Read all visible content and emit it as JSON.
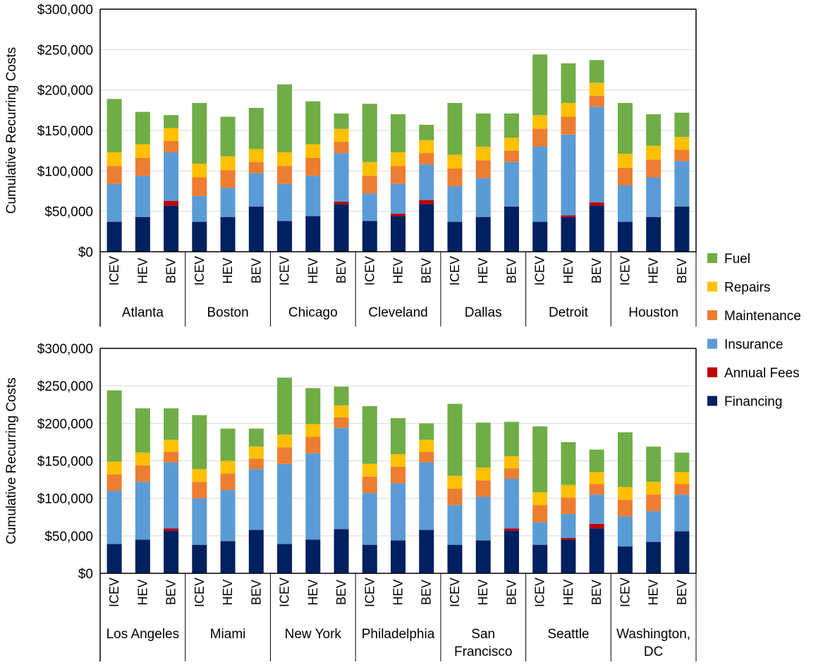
{
  "chart_data": {
    "type": "bar",
    "stacked": true,
    "ylabel": "Cumulative Recurring Costs",
    "ylim": [
      0,
      300000
    ],
    "y_ticks": [
      0,
      50000,
      100000,
      150000,
      200000,
      250000,
      300000
    ],
    "y_tick_labels": [
      "$0",
      "$50,000",
      "$100,000",
      "$150,000",
      "$200,000",
      "$250,000",
      "$300,000"
    ],
    "grid": true,
    "legend_position": "right",
    "vehicle_types": [
      "ICEV",
      "HEV",
      "BEV"
    ],
    "series": [
      {
        "name": "Fuel",
        "color": "#70AD47"
      },
      {
        "name": "Repairs",
        "color": "#FFC000"
      },
      {
        "name": "Maintenance",
        "color": "#ED7D31"
      },
      {
        "name": "Insurance",
        "color": "#5B9BD5"
      },
      {
        "name": "Annual Fees",
        "color": "#C00000"
      },
      {
        "name": "Financing",
        "color": "#002060"
      }
    ],
    "panels": [
      {
        "cities": [
          {
            "name": [
              "Atlanta"
            ],
            "bars": [
              {
                "Financing": 37000,
                "Annual Fees": 0,
                "Insurance": 47000,
                "Maintenance": 22000,
                "Repairs": 17000,
                "Fuel": 66000
              },
              {
                "Financing": 43000,
                "Annual Fees": 0,
                "Insurance": 51000,
                "Maintenance": 22000,
                "Repairs": 17000,
                "Fuel": 40000
              },
              {
                "Financing": 57000,
                "Annual Fees": 6000,
                "Insurance": 60000,
                "Maintenance": 14000,
                "Repairs": 16000,
                "Fuel": 16000
              }
            ]
          },
          {
            "name": [
              "Boston"
            ],
            "bars": [
              {
                "Financing": 37000,
                "Annual Fees": 0,
                "Insurance": 32000,
                "Maintenance": 23000,
                "Repairs": 17000,
                "Fuel": 75000
              },
              {
                "Financing": 43000,
                "Annual Fees": 0,
                "Insurance": 36000,
                "Maintenance": 22000,
                "Repairs": 17000,
                "Fuel": 49000
              },
              {
                "Financing": 56000,
                "Annual Fees": 0,
                "Insurance": 41000,
                "Maintenance": 14000,
                "Repairs": 16000,
                "Fuel": 51000
              }
            ]
          },
          {
            "name": [
              "Chicago"
            ],
            "bars": [
              {
                "Financing": 38000,
                "Annual Fees": 0,
                "Insurance": 46000,
                "Maintenance": 22000,
                "Repairs": 17000,
                "Fuel": 84000
              },
              {
                "Financing": 44000,
                "Annual Fees": 0,
                "Insurance": 50000,
                "Maintenance": 22000,
                "Repairs": 17000,
                "Fuel": 53000
              },
              {
                "Financing": 59000,
                "Annual Fees": 3000,
                "Insurance": 60000,
                "Maintenance": 14000,
                "Repairs": 16000,
                "Fuel": 19000
              }
            ]
          },
          {
            "name": [
              "Cleveland"
            ],
            "bars": [
              {
                "Financing": 38000,
                "Annual Fees": 0,
                "Insurance": 34000,
                "Maintenance": 22000,
                "Repairs": 17000,
                "Fuel": 72000
              },
              {
                "Financing": 44000,
                "Annual Fees": 3000,
                "Insurance": 37000,
                "Maintenance": 22000,
                "Repairs": 17000,
                "Fuel": 47000
              },
              {
                "Financing": 59000,
                "Annual Fees": 5000,
                "Insurance": 44000,
                "Maintenance": 14000,
                "Repairs": 16000,
                "Fuel": 19000
              }
            ]
          },
          {
            "name": [
              "Dallas"
            ],
            "bars": [
              {
                "Financing": 37000,
                "Annual Fees": 0,
                "Insurance": 44000,
                "Maintenance": 22000,
                "Repairs": 17000,
                "Fuel": 64000
              },
              {
                "Financing": 43000,
                "Annual Fees": 0,
                "Insurance": 48000,
                "Maintenance": 22000,
                "Repairs": 17000,
                "Fuel": 41000
              },
              {
                "Financing": 56000,
                "Annual Fees": 0,
                "Insurance": 55000,
                "Maintenance": 14000,
                "Repairs": 16000,
                "Fuel": 30000
              }
            ]
          },
          {
            "name": [
              "Detroit"
            ],
            "bars": [
              {
                "Financing": 37000,
                "Annual Fees": 0,
                "Insurance": 93000,
                "Maintenance": 22000,
                "Repairs": 17000,
                "Fuel": 75000
              },
              {
                "Financing": 43000,
                "Annual Fees": 2000,
                "Insurance": 100000,
                "Maintenance": 22000,
                "Repairs": 17000,
                "Fuel": 49000
              },
              {
                "Financing": 57000,
                "Annual Fees": 4000,
                "Insurance": 118000,
                "Maintenance": 14000,
                "Repairs": 16000,
                "Fuel": 28000
              }
            ]
          },
          {
            "name": [
              "Houston"
            ],
            "bars": [
              {
                "Financing": 37000,
                "Annual Fees": 0,
                "Insurance": 45000,
                "Maintenance": 22000,
                "Repairs": 17000,
                "Fuel": 63000
              },
              {
                "Financing": 43000,
                "Annual Fees": 0,
                "Insurance": 49000,
                "Maintenance": 22000,
                "Repairs": 17000,
                "Fuel": 39000
              },
              {
                "Financing": 56000,
                "Annual Fees": 0,
                "Insurance": 56000,
                "Maintenance": 14000,
                "Repairs": 16000,
                "Fuel": 30000
              }
            ]
          }
        ]
      },
      {
        "cities": [
          {
            "name": [
              "Los Angeles"
            ],
            "bars": [
              {
                "Financing": 39000,
                "Annual Fees": 0,
                "Insurance": 71000,
                "Maintenance": 22000,
                "Repairs": 17000,
                "Fuel": 95000
              },
              {
                "Financing": 45000,
                "Annual Fees": 0,
                "Insurance": 77000,
                "Maintenance": 22000,
                "Repairs": 17000,
                "Fuel": 59000
              },
              {
                "Financing": 57000,
                "Annual Fees": 3000,
                "Insurance": 88000,
                "Maintenance": 14000,
                "Repairs": 16000,
                "Fuel": 42000
              }
            ]
          },
          {
            "name": [
              "Miami"
            ],
            "bars": [
              {
                "Financing": 38000,
                "Annual Fees": 0,
                "Insurance": 62000,
                "Maintenance": 22000,
                "Repairs": 17000,
                "Fuel": 72000
              },
              {
                "Financing": 43000,
                "Annual Fees": 0,
                "Insurance": 68000,
                "Maintenance": 22000,
                "Repairs": 17000,
                "Fuel": 43000
              },
              {
                "Financing": 58000,
                "Annual Fees": 0,
                "Insurance": 81000,
                "Maintenance": 14000,
                "Repairs": 16000,
                "Fuel": 24000
              }
            ]
          },
          {
            "name": [
              "New York"
            ],
            "bars": [
              {
                "Financing": 39000,
                "Annual Fees": 0,
                "Insurance": 107000,
                "Maintenance": 22000,
                "Repairs": 17000,
                "Fuel": 76000
              },
              {
                "Financing": 45000,
                "Annual Fees": 0,
                "Insurance": 115000,
                "Maintenance": 22000,
                "Repairs": 17000,
                "Fuel": 48000
              },
              {
                "Financing": 59000,
                "Annual Fees": 0,
                "Insurance": 135000,
                "Maintenance": 14000,
                "Repairs": 16000,
                "Fuel": 25000
              }
            ]
          },
          {
            "name": [
              "Philadelphia"
            ],
            "bars": [
              {
                "Financing": 38000,
                "Annual Fees": 0,
                "Insurance": 69000,
                "Maintenance": 22000,
                "Repairs": 17000,
                "Fuel": 77000
              },
              {
                "Financing": 44000,
                "Annual Fees": 0,
                "Insurance": 76000,
                "Maintenance": 22000,
                "Repairs": 17000,
                "Fuel": 48000
              },
              {
                "Financing": 58000,
                "Annual Fees": 0,
                "Insurance": 90000,
                "Maintenance": 14000,
                "Repairs": 16000,
                "Fuel": 22000
              }
            ]
          },
          {
            "name": [
              "San",
              "Francisco"
            ],
            "bars": [
              {
                "Financing": 38000,
                "Annual Fees": 0,
                "Insurance": 53000,
                "Maintenance": 22000,
                "Repairs": 17000,
                "Fuel": 96000
              },
              {
                "Financing": 44000,
                "Annual Fees": 0,
                "Insurance": 58000,
                "Maintenance": 22000,
                "Repairs": 17000,
                "Fuel": 60000
              },
              {
                "Financing": 57000,
                "Annual Fees": 3000,
                "Insurance": 66000,
                "Maintenance": 14000,
                "Repairs": 16000,
                "Fuel": 46000
              }
            ]
          },
          {
            "name": [
              "Seattle"
            ],
            "bars": [
              {
                "Financing": 38000,
                "Annual Fees": 0,
                "Insurance": 30000,
                "Maintenance": 23000,
                "Repairs": 17000,
                "Fuel": 88000
              },
              {
                "Financing": 45000,
                "Annual Fees": 2000,
                "Insurance": 32000,
                "Maintenance": 22000,
                "Repairs": 17000,
                "Fuel": 57000
              },
              {
                "Financing": 60000,
                "Annual Fees": 6000,
                "Insurance": 39000,
                "Maintenance": 14000,
                "Repairs": 16000,
                "Fuel": 30000
              }
            ]
          },
          {
            "name": [
              "Washington,",
              "DC"
            ],
            "bars": [
              {
                "Financing": 36000,
                "Annual Fees": 0,
                "Insurance": 40000,
                "Maintenance": 22000,
                "Repairs": 17000,
                "Fuel": 73000
              },
              {
                "Financing": 42000,
                "Annual Fees": 0,
                "Insurance": 41000,
                "Maintenance": 22000,
                "Repairs": 17000,
                "Fuel": 47000
              },
              {
                "Financing": 56000,
                "Annual Fees": 0,
                "Insurance": 49000,
                "Maintenance": 14000,
                "Repairs": 16000,
                "Fuel": 26000
              }
            ]
          }
        ]
      }
    ]
  }
}
